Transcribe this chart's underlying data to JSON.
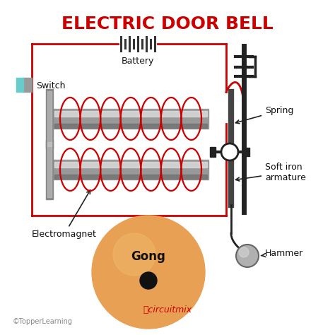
{
  "title": "ELECTRIC DOOR BELL",
  "title_color": "#cc0000",
  "title_fontsize": 18,
  "bg_color": "#ffffff",
  "labels": {
    "battery": "Battery",
    "switch": "Switch",
    "electromagnet": "Electromagnet",
    "gong": "Gong",
    "spring": "Spring",
    "soft_iron": "Soft iron\narmature",
    "hammer": "Hammer",
    "copyright": "©TopperLearning",
    "brand": "ⓘcircuitmix"
  },
  "circuit_color": "#cc0000",
  "metal_color": "#888888",
  "gong_color": "#e8a055",
  "gong_center_color": "#111111",
  "switch_color_front": "#66cccc",
  "switch_color_back": "#999999",
  "label_color": "#111111",
  "brand_color": "#cc0000",
  "panel_color": "#222222",
  "rod_color1": "#aaaaaa",
  "rod_color2": "#cccccc",
  "rod_color3": "#777777"
}
